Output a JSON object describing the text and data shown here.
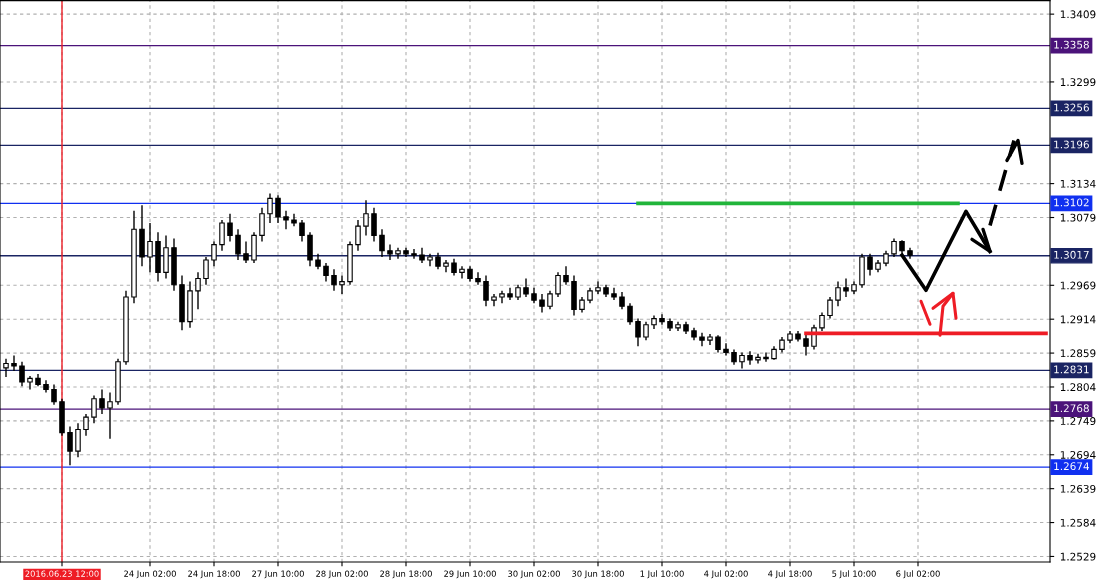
{
  "chart_data": {
    "type": "candlestick",
    "categories": [
      null,
      null,
      null,
      null,
      null,
      null,
      null,
      "2016.06.23 12:00",
      null,
      null,
      null,
      null,
      null,
      null,
      null,
      null,
      null,
      null,
      "24 Jun 02:00",
      null,
      null,
      null,
      null,
      null,
      null,
      null,
      "24 Jun 18:00",
      null,
      null,
      null,
      null,
      null,
      null,
      null,
      "27 Jun 10:00",
      null,
      null,
      null,
      null,
      null,
      null,
      null,
      "28 Jun 02:00",
      null,
      null,
      null,
      null,
      null,
      null,
      null,
      "28 Jun 18:00",
      null,
      null,
      null,
      null,
      null,
      null,
      null,
      "29 Jun 10:00",
      null,
      null,
      null,
      null,
      null,
      null,
      null,
      "30 Jun 02:00",
      null,
      null,
      null,
      null,
      null,
      null,
      null,
      "30 Jun 18:00",
      null,
      null,
      null,
      null,
      null,
      null,
      null,
      "1 Jul 10:00",
      null,
      null,
      null,
      null,
      null,
      null,
      null,
      "4 Jul 02:00",
      null,
      null,
      null,
      null,
      null,
      null,
      null,
      "4 Jul 18:00",
      null,
      null,
      null,
      null,
      null,
      null,
      null,
      "5 Jul 10:00",
      null,
      null,
      null,
      null,
      null,
      null,
      null,
      "6 Jul 02:00",
      null,
      null,
      null,
      null,
      null,
      null,
      null,
      null,
      null,
      null,
      null,
      null,
      null,
      null,
      null,
      null
    ],
    "color": "#000000",
    "ohlc": [
      [
        1.2835,
        1.285,
        1.282,
        1.2842
      ],
      [
        1.2842,
        1.2855,
        1.283,
        1.2838
      ],
      [
        1.2838,
        1.2845,
        1.2805,
        1.2812
      ],
      [
        1.2812,
        1.2822,
        1.28,
        1.2818
      ],
      [
        1.2818,
        1.2825,
        1.2805,
        1.2808
      ],
      [
        1.2808,
        1.2815,
        1.2795,
        1.28
      ],
      [
        1.28,
        1.2808,
        1.2775,
        1.278
      ],
      [
        1.278,
        1.2785,
        1.2725,
        1.273
      ],
      [
        1.273,
        1.274,
        1.2677,
        1.27
      ],
      [
        1.27,
        1.2745,
        1.269,
        1.2735
      ],
      [
        1.2735,
        1.276,
        1.2725,
        1.2755
      ],
      [
        1.2755,
        1.279,
        1.2745,
        1.2785
      ],
      [
        1.2785,
        1.28,
        1.276,
        1.277
      ],
      [
        1.277,
        1.2795,
        1.272,
        1.278
      ],
      [
        1.278,
        1.285,
        1.2775,
        1.2845
      ],
      [
        1.2845,
        1.296,
        1.284,
        1.295
      ],
      [
        1.295,
        1.309,
        1.294,
        1.306
      ],
      [
        1.306,
        1.3099,
        1.3,
        1.3015
      ],
      [
        1.3015,
        1.307,
        1.299,
        1.304
      ],
      [
        1.304,
        1.3055,
        1.2975,
        1.299
      ],
      [
        1.299,
        1.305,
        1.298,
        1.303
      ],
      [
        1.303,
        1.3045,
        1.296,
        1.297
      ],
      [
        1.297,
        1.2985,
        1.2896,
        1.291
      ],
      [
        1.291,
        1.2975,
        1.29,
        1.296
      ],
      [
        1.296,
        1.299,
        1.293,
        1.298
      ],
      [
        1.298,
        1.3015,
        1.297,
        1.301
      ],
      [
        1.301,
        1.304,
        1.3,
        1.3035
      ],
      [
        1.3035,
        1.3075,
        1.3025,
        1.307
      ],
      [
        1.307,
        1.3085,
        1.304,
        1.305
      ],
      [
        1.305,
        1.306,
        1.301,
        1.302
      ],
      [
        1.302,
        1.304,
        1.3005,
        1.301
      ],
      [
        1.301,
        1.3055,
        1.3005,
        1.305
      ],
      [
        1.305,
        1.3095,
        1.304,
        1.3085
      ],
      [
        1.3085,
        1.3118,
        1.307,
        1.311
      ],
      [
        1.311,
        1.3115,
        1.307,
        1.308
      ],
      [
        1.308,
        1.309,
        1.306,
        1.3075
      ],
      [
        1.3075,
        1.3085,
        1.3065,
        1.307
      ],
      [
        1.307,
        1.3075,
        1.304,
        1.305
      ],
      [
        1.305,
        1.3055,
        1.3,
        1.301
      ],
      [
        1.301,
        1.302,
        1.2995,
        1.3
      ],
      [
        1.3,
        1.3005,
        1.2975,
        1.2985
      ],
      [
        1.2985,
        1.2995,
        1.296,
        1.297
      ],
      [
        1.297,
        1.2985,
        1.2955,
        1.2975
      ],
      [
        1.2975,
        1.304,
        1.297,
        1.3035
      ],
      [
        1.3035,
        1.3075,
        1.3025,
        1.3065
      ],
      [
        1.3065,
        1.3107,
        1.305,
        1.3085
      ],
      [
        1.3085,
        1.3095,
        1.304,
        1.305
      ],
      [
        1.305,
        1.306,
        1.3015,
        1.3025
      ],
      [
        1.3025,
        1.3035,
        1.301,
        1.302
      ],
      [
        1.302,
        1.303,
        1.3012,
        1.3025
      ],
      [
        1.3025,
        1.303,
        1.3015,
        1.302
      ],
      [
        1.302,
        1.3028,
        1.3012,
        1.3018
      ],
      [
        1.3018,
        1.303,
        1.3005,
        1.301
      ],
      [
        1.301,
        1.302,
        1.3,
        1.3015
      ],
      [
        1.3015,
        1.3022,
        1.2995,
        1.3
      ],
      [
        1.3,
        1.301,
        1.299,
        1.3005
      ],
      [
        1.3005,
        1.3012,
        1.2985,
        1.299
      ],
      [
        1.299,
        1.3,
        1.298,
        1.2995
      ],
      [
        1.2995,
        1.3,
        1.2975,
        1.298
      ],
      [
        1.298,
        1.299,
        1.297,
        1.2975
      ],
      [
        1.2975,
        1.2985,
        1.2935,
        1.2945
      ],
      [
        1.2945,
        1.2955,
        1.2935,
        1.295
      ],
      [
        1.295,
        1.296,
        1.294,
        1.2955
      ],
      [
        1.2955,
        1.2965,
        1.2945,
        1.295
      ],
      [
        1.295,
        1.297,
        1.2945,
        1.2965
      ],
      [
        1.2965,
        1.298,
        1.295,
        1.2955
      ],
      [
        1.2955,
        1.2965,
        1.294,
        1.2945
      ],
      [
        1.2945,
        1.2955,
        1.2925,
        1.2935
      ],
      [
        1.2935,
        1.296,
        1.293,
        1.2955
      ],
      [
        1.2955,
        1.299,
        1.295,
        1.2985
      ],
      [
        1.2985,
        1.3,
        1.297,
        1.2975
      ],
      [
        1.2975,
        1.2985,
        1.292,
        1.293
      ],
      [
        1.293,
        1.295,
        1.2925,
        1.2945
      ],
      [
        1.2945,
        1.2965,
        1.294,
        1.296
      ],
      [
        1.296,
        1.2975,
        1.2955,
        1.2965
      ],
      [
        1.2965,
        1.297,
        1.295,
        1.2955
      ],
      [
        1.2955,
        1.2965,
        1.2945,
        1.295
      ],
      [
        1.295,
        1.2958,
        1.293,
        1.2935
      ],
      [
        1.2935,
        1.294,
        1.2905,
        1.291
      ],
      [
        1.291,
        1.2915,
        1.287,
        1.2885
      ],
      [
        1.2885,
        1.291,
        1.288,
        1.2905
      ],
      [
        1.2905,
        1.292,
        1.2898,
        1.2915
      ],
      [
        1.2915,
        1.2922,
        1.2905,
        1.291
      ],
      [
        1.291,
        1.2915,
        1.2895,
        1.29
      ],
      [
        1.29,
        1.291,
        1.2895,
        1.2905
      ],
      [
        1.2905,
        1.291,
        1.289,
        1.2895
      ],
      [
        1.2895,
        1.29,
        1.288,
        1.2885
      ],
      [
        1.2885,
        1.2892,
        1.287,
        1.288
      ],
      [
        1.288,
        1.289,
        1.2872,
        1.2885
      ],
      [
        1.2885,
        1.2888,
        1.286,
        1.2865
      ],
      [
        1.2865,
        1.2875,
        1.2855,
        1.286
      ],
      [
        1.286,
        1.2865,
        1.284,
        1.2845
      ],
      [
        1.2845,
        1.286,
        1.2834,
        1.2855
      ],
      [
        1.2855,
        1.2862,
        1.284,
        1.2848
      ],
      [
        1.2848,
        1.2858,
        1.2842,
        1.2852
      ],
      [
        1.2852,
        1.286,
        1.2845,
        1.285
      ],
      [
        1.285,
        1.287,
        1.2848,
        1.2865
      ],
      [
        1.2865,
        1.2885,
        1.286,
        1.288
      ],
      [
        1.288,
        1.2895,
        1.2875,
        1.289
      ],
      [
        1.289,
        1.2895,
        1.2878,
        1.2882
      ],
      [
        1.2882,
        1.289,
        1.2855,
        1.287
      ],
      [
        1.287,
        1.2905,
        1.2865,
        1.29
      ],
      [
        1.29,
        1.2925,
        1.2895,
        1.292
      ],
      [
        1.292,
        1.295,
        1.2915,
        1.2945
      ],
      [
        1.2945,
        1.2975,
        1.2935,
        1.2965
      ],
      [
        1.2965,
        1.298,
        1.295,
        1.296
      ],
      [
        1.296,
        1.2975,
        1.2955,
        1.297
      ],
      [
        1.297,
        1.302,
        1.2965,
        1.3015
      ],
      [
        1.3015,
        1.302,
        1.2985,
        1.2995
      ],
      [
        1.2995,
        1.301,
        1.299,
        1.3005
      ],
      [
        1.3005,
        1.3025,
        1.3,
        1.302
      ],
      [
        1.302,
        1.3045,
        1.3015,
        1.304
      ],
      [
        1.304,
        1.3042,
        1.302,
        1.3025
      ],
      [
        1.3025,
        1.303,
        1.3012,
        1.3018
      ],
      null,
      null,
      null,
      null,
      null,
      null,
      null,
      null,
      null,
      null,
      null,
      null,
      null,
      null,
      null,
      null,
      null
    ],
    "series": [
      {
        "type": "line",
        "color": "#21b53a",
        "values": [
          null,
          null,
          null,
          null,
          null,
          null,
          null,
          null,
          null,
          null,
          null,
          null,
          null,
          null,
          null,
          null,
          null,
          null,
          null,
          null,
          null,
          null,
          null,
          null,
          null,
          null,
          null,
          null,
          null,
          null,
          null,
          null,
          null,
          null,
          null,
          null,
          null,
          null,
          null,
          null,
          null,
          null,
          null,
          null,
          null,
          null,
          null,
          null,
          null,
          null,
          null,
          null,
          null,
          null,
          null,
          null,
          null,
          null,
          null,
          null,
          null,
          null,
          null,
          null,
          null,
          null,
          null,
          null,
          null,
          null,
          null,
          null,
          null,
          null,
          null,
          null,
          null,
          null,
          null,
          1.3102,
          null,
          null,
          null,
          null,
          null,
          null,
          null,
          null,
          null,
          null,
          null,
          null,
          null,
          null,
          null,
          null,
          null,
          null,
          null,
          null,
          null,
          null,
          null,
          null,
          null,
          null,
          null,
          null,
          null,
          null,
          null,
          null,
          null,
          null,
          null,
          null,
          null,
          null,
          null,
          1.3102,
          null,
          null,
          null,
          null,
          null,
          null,
          null,
          null,
          null,
          null,
          null
        ]
      },
      {
        "type": "line",
        "color": "#ee1c25",
        "values": [
          null,
          null,
          null,
          null,
          null,
          null,
          null,
          null,
          null,
          null,
          null,
          null,
          null,
          null,
          null,
          null,
          null,
          null,
          null,
          null,
          null,
          null,
          null,
          null,
          null,
          null,
          null,
          null,
          null,
          null,
          null,
          null,
          null,
          null,
          null,
          null,
          null,
          null,
          null,
          null,
          null,
          null,
          null,
          null,
          null,
          null,
          null,
          null,
          null,
          null,
          null,
          null,
          null,
          null,
          null,
          null,
          null,
          null,
          null,
          null,
          null,
          null,
          null,
          null,
          null,
          null,
          null,
          null,
          null,
          null,
          null,
          null,
          null,
          null,
          null,
          null,
          null,
          null,
          null,
          null,
          null,
          null,
          null,
          null,
          null,
          null,
          null,
          null,
          null,
          null,
          null,
          null,
          null,
          null,
          null,
          null,
          null,
          null,
          null,
          null,
          1.2891,
          null,
          null,
          null,
          null,
          null,
          null,
          null,
          null,
          null,
          null,
          null,
          null,
          null,
          null,
          null,
          null,
          null,
          null,
          null,
          null,
          null,
          null,
          null,
          null,
          null,
          null,
          null,
          null,
          null,
          1.2891
        ]
      },
      {
        "type": "line",
        "color": "#000000",
        "line_style": "solid",
        "values": [
          null,
          null,
          null,
          null,
          null,
          null,
          null,
          null,
          null,
          null,
          null,
          null,
          null,
          null,
          null,
          null,
          null,
          null,
          null,
          null,
          null,
          null,
          null,
          null,
          null,
          null,
          null,
          null,
          null,
          null,
          null,
          null,
          null,
          null,
          null,
          null,
          null,
          null,
          null,
          null,
          null,
          null,
          null,
          null,
          null,
          null,
          null,
          null,
          null,
          null,
          null,
          null,
          null,
          null,
          null,
          null,
          null,
          null,
          null,
          null,
          null,
          null,
          null,
          null,
          null,
          null,
          null,
          null,
          null,
          null,
          null,
          null,
          null,
          null,
          null,
          null,
          null,
          null,
          null,
          null,
          null,
          null,
          null,
          null,
          null,
          null,
          null,
          null,
          null,
          null,
          null,
          null,
          null,
          null,
          null,
          null,
          null,
          null,
          null,
          null,
          null,
          null,
          null,
          null,
          null,
          null,
          null,
          null,
          null,
          null,
          null,
          null,
          1.3018,
          null,
          null,
          1.2961,
          null,
          null,
          null,
          null,
          1.3089,
          null,
          null,
          1.3024,
          null,
          null,
          null,
          null,
          null,
          null,
          null
        ]
      },
      {
        "type": "line",
        "color": "#000000",
        "line_style": "dashed",
        "values": [
          null,
          null,
          null,
          null,
          null,
          null,
          null,
          null,
          null,
          null,
          null,
          null,
          null,
          null,
          null,
          null,
          null,
          null,
          null,
          null,
          null,
          null,
          null,
          null,
          null,
          null,
          null,
          null,
          null,
          null,
          null,
          null,
          null,
          null,
          null,
          null,
          null,
          null,
          null,
          null,
          null,
          null,
          null,
          null,
          null,
          null,
          null,
          null,
          null,
          null,
          null,
          null,
          null,
          null,
          null,
          null,
          null,
          null,
          null,
          null,
          null,
          null,
          null,
          null,
          null,
          null,
          null,
          null,
          null,
          null,
          null,
          null,
          null,
          null,
          null,
          null,
          null,
          null,
          null,
          null,
          null,
          null,
          null,
          null,
          null,
          null,
          null,
          null,
          null,
          null,
          null,
          null,
          null,
          null,
          null,
          null,
          null,
          null,
          null,
          null,
          null,
          null,
          null,
          null,
          null,
          null,
          null,
          null,
          null,
          null,
          null,
          null,
          null,
          null,
          null,
          null,
          null,
          null,
          null,
          null,
          null,
          null,
          null,
          1.3066,
          null,
          null,
          1.3204,
          null,
          null,
          null,
          null
        ]
      }
    ],
    "ylim": [
      1.252,
      1.3431
    ],
    "yticks": [
      1.3409,
      1.3299,
      1.3134,
      1.3079,
      1.2969,
      1.2914,
      1.2859,
      1.2804,
      1.2749,
      1.2694,
      1.2639,
      1.2584,
      1.2529
    ],
    "ref_lines": [
      {
        "axis": "y",
        "value": 1.3358,
        "label": "1.3358",
        "color": "#4b137a"
      },
      {
        "axis": "y",
        "value": 1.3256,
        "label": "1.3256",
        "color": "#1a2463"
      },
      {
        "axis": "y",
        "value": 1.3196,
        "label": "1.3196",
        "color": "#1a2463"
      },
      {
        "axis": "y",
        "value": 1.3102,
        "label": "1.3102",
        "color": "#1030f0"
      },
      {
        "axis": "y",
        "value": 1.3017,
        "label": "1.3017",
        "color": "#1a2463"
      },
      {
        "axis": "y",
        "value": 1.2831,
        "label": "1.2831",
        "color": "#1a2463"
      },
      {
        "axis": "y",
        "value": 1.2768,
        "label": "1.2768",
        "color": "#4b137a"
      },
      {
        "axis": "y",
        "value": 1.2674,
        "label": "1.2674",
        "color": "#1030f0"
      },
      {
        "axis": "x",
        "value": "2016.06.23 12:00",
        "color": "#ee1c25"
      }
    ],
    "grid": true
  }
}
